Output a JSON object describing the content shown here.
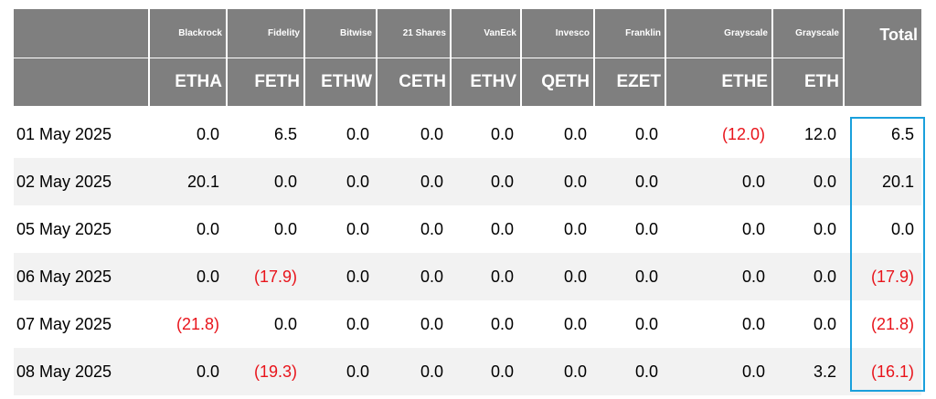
{
  "table": {
    "columns": [
      {
        "issuer": "Blackrock",
        "ticker": "ETHA"
      },
      {
        "issuer": "Fidelity",
        "ticker": "FETH"
      },
      {
        "issuer": "Bitwise",
        "ticker": "ETHW"
      },
      {
        "issuer": "21 Shares",
        "ticker": "CETH"
      },
      {
        "issuer": "VanEck",
        "ticker": "ETHV"
      },
      {
        "issuer": "Invesco",
        "ticker": "QETH"
      },
      {
        "issuer": "Franklin",
        "ticker": "EZET"
      },
      {
        "issuer": "Grayscale",
        "ticker": "ETHE"
      },
      {
        "issuer": "Grayscale",
        "ticker": "ETH"
      },
      {
        "issuer": "Total"
      }
    ],
    "rows": [
      [
        "01 May 2025",
        "0.0",
        "6.5",
        "0.0",
        "0.0",
        "0.0",
        "0.0",
        "0.0",
        "(12.0)",
        "12.0",
        "6.5"
      ],
      [
        "02 May 2025",
        "20.1",
        "0.0",
        "0.0",
        "0.0",
        "0.0",
        "0.0",
        "0.0",
        "0.0",
        "0.0",
        "20.1"
      ],
      [
        "05 May 2025",
        "0.0",
        "0.0",
        "0.0",
        "0.0",
        "0.0",
        "0.0",
        "0.0",
        "0.0",
        "0.0",
        "0.0"
      ],
      [
        "06 May 2025",
        "0.0",
        "(17.9)",
        "0.0",
        "0.0",
        "0.0",
        "0.0",
        "0.0",
        "0.0",
        "0.0",
        "(17.9)"
      ],
      [
        "07 May 2025",
        "(21.8)",
        "0.0",
        "0.0",
        "0.0",
        "0.0",
        "0.0",
        "0.0",
        "0.0",
        "0.0",
        "(21.8)"
      ],
      [
        "08 May 2025",
        "0.0",
        "(19.3)",
        "0.0",
        "0.0",
        "0.0",
        "0.0",
        "0.0",
        "0.0",
        "3.2",
        "(16.1)"
      ]
    ]
  }
}
